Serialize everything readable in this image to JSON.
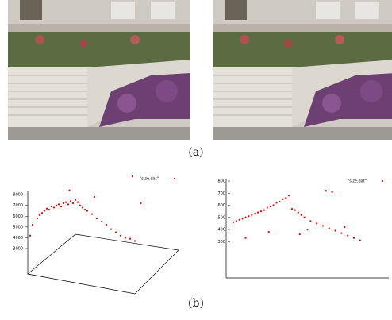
{
  "figure": {
    "caption_a": "(a)",
    "caption_b": "(b)"
  },
  "chart_data": [
    {
      "type": "scatter",
      "legend": "\"size.dat\"",
      "color": "#e00000",
      "x": [
        4,
        8,
        10,
        12,
        14,
        16,
        18,
        20,
        22,
        24,
        26,
        28,
        30,
        32,
        34,
        36,
        38,
        40,
        42,
        44,
        46,
        48,
        50,
        54,
        58,
        62,
        66,
        70,
        74,
        78,
        82,
        86,
        90,
        35,
        88,
        95,
        56,
        2
      ],
      "values": [
        5200,
        5800,
        6100,
        6300,
        6500,
        6700,
        6600,
        6900,
        6800,
        7000,
        7100,
        6900,
        7200,
        7300,
        7100,
        7400,
        7200,
        7500,
        7300,
        7000,
        6800,
        6600,
        6500,
        6200,
        5800,
        5500,
        5200,
        4800,
        4500,
        4200,
        4000,
        3900,
        3700,
        8400,
        9700,
        7200,
        7800,
        4200
      ],
      "xlim": [
        0,
        100
      ],
      "ylim": [
        3000,
        10000
      ],
      "yticks": [
        3000,
        4000,
        5000,
        6000,
        7000,
        8000
      ]
    },
    {
      "type": "scatter",
      "legend": "\"size.dat\"",
      "color": "#e00000",
      "x": [
        2,
        4,
        6,
        8,
        10,
        12,
        14,
        16,
        18,
        20,
        22,
        24,
        26,
        28,
        30,
        32,
        34,
        36,
        38,
        40,
        42,
        44,
        46,
        48,
        52,
        56,
        60,
        64,
        68,
        72,
        76,
        80,
        84,
        62,
        66,
        10,
        25,
        45,
        50,
        74
      ],
      "values": [
        460,
        470,
        480,
        490,
        500,
        510,
        520,
        530,
        540,
        550,
        560,
        580,
        590,
        600,
        620,
        630,
        650,
        660,
        680,
        570,
        560,
        540,
        520,
        500,
        470,
        450,
        430,
        410,
        390,
        370,
        350,
        330,
        310,
        720,
        710,
        330,
        380,
        360,
        400,
        420
      ],
      "xlim": [
        0,
        100
      ],
      "ylim": [
        0,
        800
      ],
      "yticks": [
        300,
        400,
        500,
        600,
        700,
        800
      ]
    }
  ]
}
